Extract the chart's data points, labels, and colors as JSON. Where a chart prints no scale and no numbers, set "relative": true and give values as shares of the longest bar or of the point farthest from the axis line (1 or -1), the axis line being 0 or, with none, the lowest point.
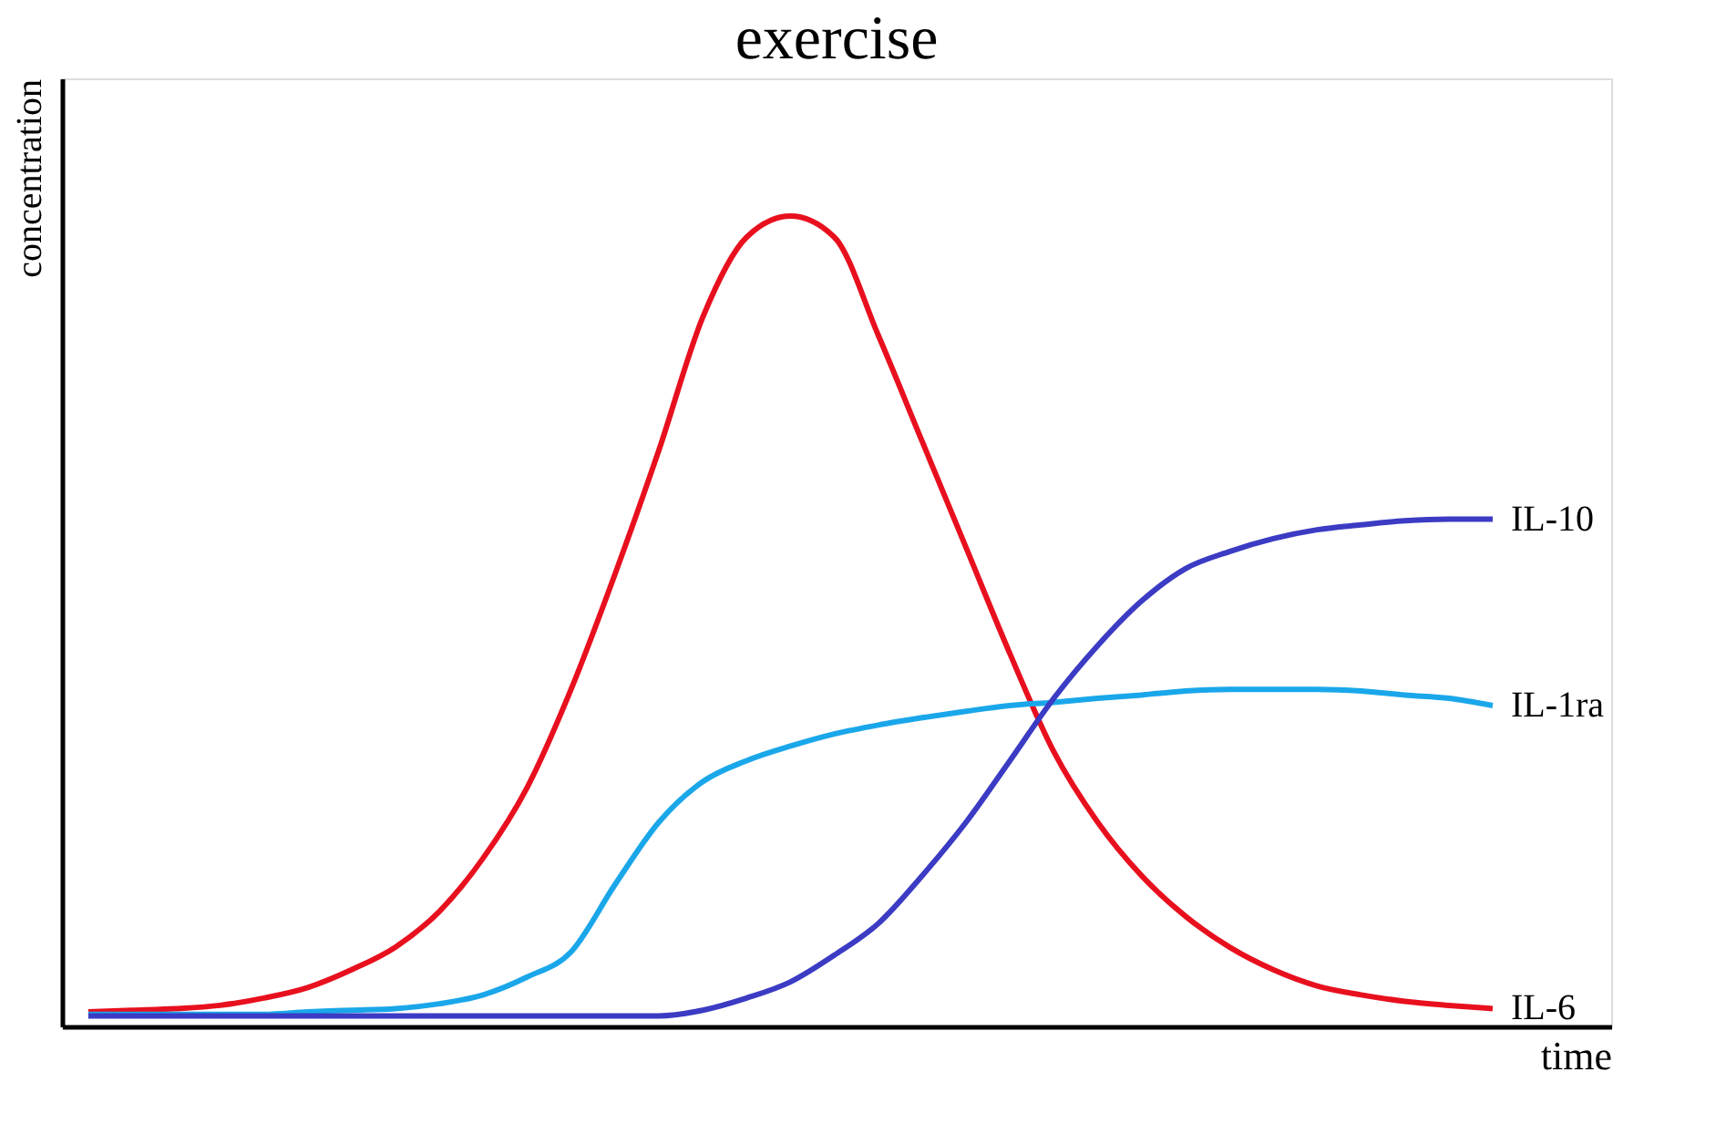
{
  "chart_data": {
    "type": "line",
    "title": "exercise",
    "xlabel": "time",
    "ylabel": "concentration",
    "relative": true,
    "marker": "none",
    "line_style": "solid",
    "categories": [
      null,
      null,
      null,
      null,
      null,
      null,
      null,
      null,
      null,
      null,
      null,
      null,
      null,
      null,
      null,
      null,
      null,
      null,
      null,
      null,
      null,
      null,
      null,
      null,
      null,
      null,
      null,
      null,
      null,
      null,
      null,
      null,
      null
    ],
    "series": [
      {
        "name": "IL-6",
        "color": "#e8101e",
        "values": [
          0.018,
          0.02,
          0.022,
          0.026,
          0.035,
          0.048,
          0.07,
          0.098,
          0.142,
          0.208,
          0.295,
          0.416,
          0.558,
          0.711,
          0.875,
          0.974,
          1,
          0.974,
          0.853,
          0.722,
          0.591,
          0.46,
          0.339,
          0.252,
          0.186,
          0.136,
          0.098,
          0.07,
          0.05,
          0.039,
          0.031,
          0.026,
          0.022
        ]
      },
      {
        "name": "IL-1ra",
        "color": "#1aa7ea",
        "values": [
          0.015,
          0.015,
          0.015,
          0.015,
          0.015,
          0.018,
          0.02,
          0.022,
          0.028,
          0.039,
          0.061,
          0.092,
          0.175,
          0.252,
          0.302,
          0.328,
          0.346,
          0.361,
          0.372,
          0.381,
          0.389,
          0.396,
          0.4,
          0.405,
          0.409,
          0.414,
          0.416,
          0.416,
          0.416,
          0.414,
          0.409,
          0.405,
          0.396
        ]
      },
      {
        "name": "IL-10",
        "color": "#3b3bc4",
        "values": [
          0.013,
          0.013,
          0.013,
          0.013,
          0.013,
          0.013,
          0.013,
          0.013,
          0.013,
          0.013,
          0.013,
          0.013,
          0.013,
          0.013,
          0.02,
          0.035,
          0.055,
          0.088,
          0.127,
          0.186,
          0.252,
          0.328,
          0.405,
          0.47,
          0.525,
          0.565,
          0.586,
          0.602,
          0.613,
          0.619,
          0.624,
          0.626,
          0.626
        ]
      }
    ]
  }
}
